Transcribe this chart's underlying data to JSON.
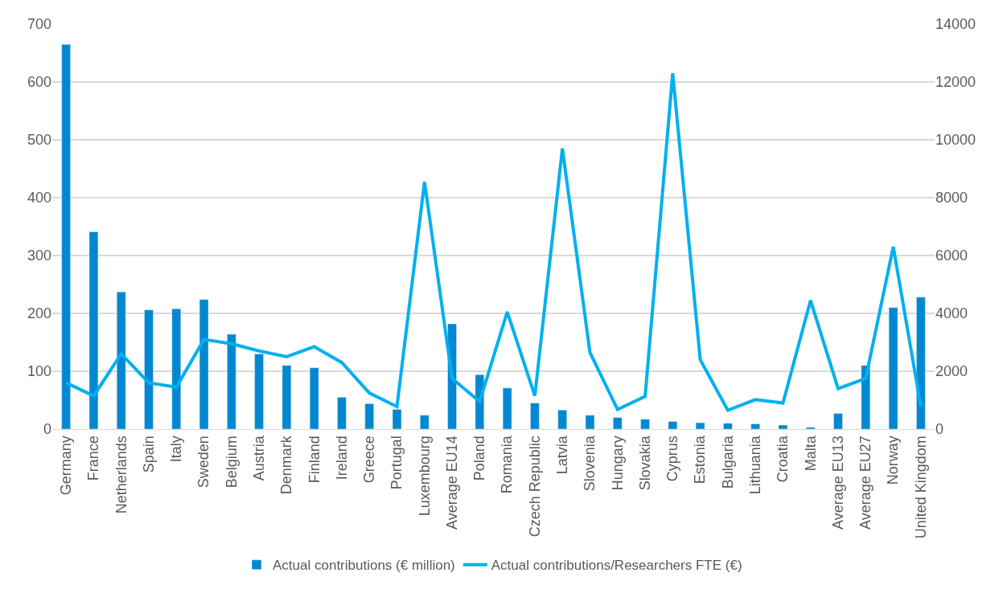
{
  "chart_data": {
    "type": "bar",
    "categories": [
      "Germany",
      "France",
      "Netherlands",
      "Spain",
      "Italy",
      "Sweden",
      "Belgium",
      "Austria",
      "Denmark",
      "Finland",
      "Ireland",
      "Greece",
      "Portugal",
      "Luxembourg",
      "Average EU14",
      "Poland",
      "Romania",
      "Czech Republic",
      "Latvia",
      "Slovenia",
      "Hungary",
      "Slovakia",
      "Cyprus",
      "Estonia",
      "Bulgaria",
      "Lithuania",
      "Croatia",
      "Malta",
      "Average EU13",
      "Average EU27",
      "Norway",
      "United Kingdom"
    ],
    "series": [
      {
        "name": "Actual contributions (€ million)",
        "color": "#0288d1",
        "values": [
          665,
          341,
          237,
          206,
          208,
          224,
          164,
          130,
          110,
          106,
          55,
          44,
          34,
          24,
          182,
          94,
          71,
          45,
          33,
          24,
          20,
          17,
          13,
          11,
          10,
          9,
          7,
          3,
          27,
          110,
          210,
          228
        ]
      },
      {
        "name": "Actual contributions/Researchers FTE (€)",
        "type": "line",
        "axis": "y2",
        "color": "#00b0f0",
        "values": [
          1600,
          1150,
          2600,
          1600,
          1450,
          3100,
          2950,
          2700,
          2500,
          2850,
          2300,
          1250,
          780,
          8550,
          1750,
          950,
          4050,
          1150,
          9700,
          2650,
          680,
          1130,
          12300,
          2400,
          650,
          1020,
          900,
          4450,
          1400,
          1750,
          6300,
          780
        ]
      }
    ],
    "ylim": [
      0,
      700
    ],
    "yticks": [
      0,
      100,
      200,
      300,
      400,
      500,
      600,
      700
    ],
    "y2lim": [
      0,
      14000
    ],
    "y2ticks": [
      0,
      2000,
      4000,
      6000,
      8000,
      10000,
      12000,
      14000
    ],
    "grid": "y",
    "legend": "bottom",
    "marker": "none",
    "line_style": "solid"
  }
}
